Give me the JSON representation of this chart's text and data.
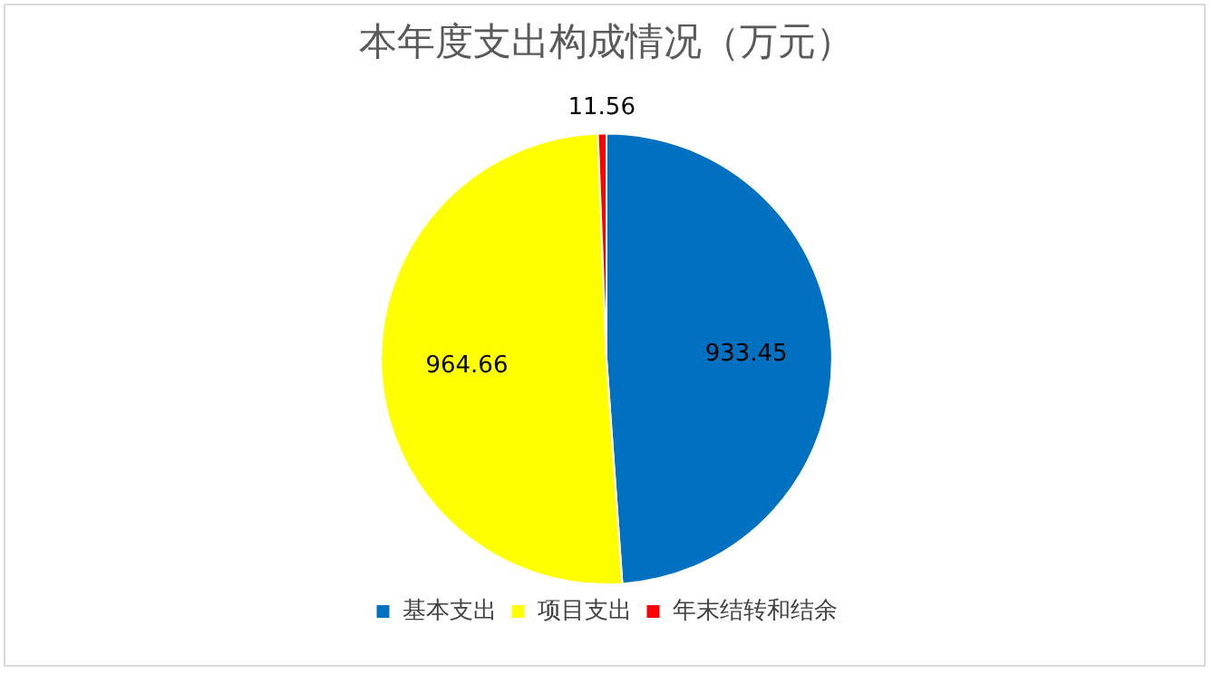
{
  "chart_data": {
    "type": "pie",
    "title": "本年度支出构成情况（万元）",
    "categories": [
      "基本支出",
      "项目支出",
      "年末结转和结余"
    ],
    "values": [
      933.45,
      964.66,
      11.56
    ],
    "colors": [
      "#0070c0",
      "#ffff00",
      "#ff0000"
    ],
    "data_labels": true,
    "legend": "bottom"
  }
}
